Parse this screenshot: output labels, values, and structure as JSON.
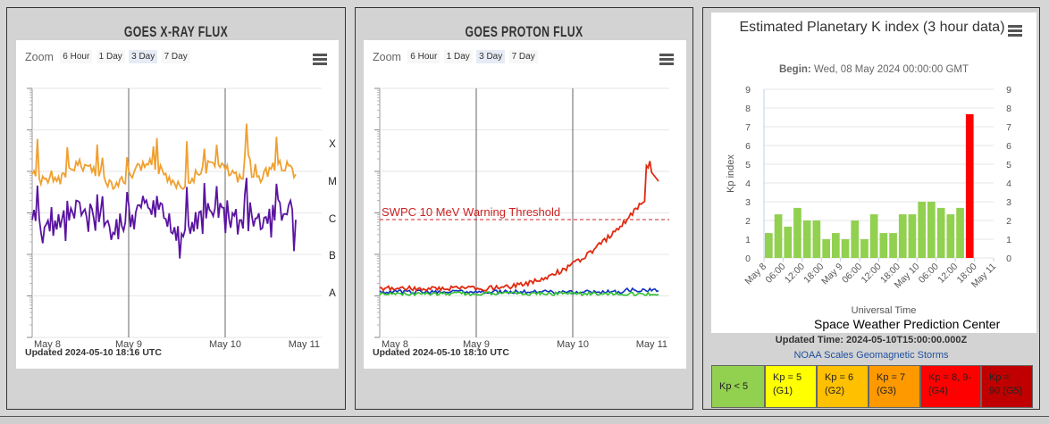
{
  "xray": {
    "title": "GOES X-RAY FLUX",
    "zoom_label": "Zoom",
    "zoom_options": [
      "6 Hour",
      "1 Day",
      "3 Day",
      "7 Day"
    ],
    "zoom_selected": "3 Day",
    "updated": "Updated 2024-05-10 18:16 UTC",
    "chart_data": {
      "type": "line",
      "x_ticks": [
        "May 8",
        "May 9",
        "May 10",
        "May 11"
      ],
      "class_labels": [
        "X",
        "M",
        "C",
        "B",
        "A"
      ],
      "scale": "log",
      "series": [
        {
          "color": "#f0a030"
        },
        {
          "color": "#5a14a0"
        }
      ]
    }
  },
  "proton": {
    "title": "GOES PROTON FLUX",
    "zoom_label": "Zoom",
    "zoom_options": [
      "6 Hour",
      "1 Day",
      "3 Day",
      "7 Day"
    ],
    "zoom_selected": "3 Day",
    "updated": "Updated 2024-05-10 18:10 UTC",
    "chart_data": {
      "type": "line",
      "x_ticks": [
        "May 8",
        "May 9",
        "May 10",
        "May 11"
      ],
      "scale": "log",
      "threshold_label": "SWPC 10 MeV Warning Threshold",
      "series": [
        {
          "color": "#e02a10"
        },
        {
          "color": "#1030c0"
        },
        {
          "color": "#30c030"
        }
      ]
    }
  },
  "kp": {
    "title": "Estimated Planetary K index (3 hour data)",
    "begin_label": "Begin:",
    "begin_value": "Wed, 08 May 2024 00:00:00 GMT",
    "credit": "Space Weather Prediction Center",
    "updated_time": "Updated Time: 2024-05-10T15:00:00.000Z",
    "noaa_link": "NOAA Scales Geomagnetic Storms",
    "chart_data": {
      "type": "bar",
      "ylabel": "Kp index",
      "xlabel": "Universal Time",
      "ylim": [
        0,
        9
      ],
      "y_ticks": [
        "0",
        "1",
        "2",
        "3",
        "4",
        "5",
        "6",
        "7",
        "8",
        "9"
      ],
      "x_ticks": [
        "May 8",
        "06:00",
        "12:00",
        "18:00",
        "May 9",
        "06:00",
        "12:00",
        "18:00",
        "May 10",
        "06:00",
        "12:00",
        "18:00",
        "May 11"
      ],
      "values": [
        1.33,
        2.33,
        1.67,
        2.67,
        2.0,
        2.0,
        1.0,
        1.33,
        1.0,
        2.0,
        1.0,
        2.33,
        1.33,
        1.33,
        2.33,
        2.33,
        3.0,
        3.0,
        2.67,
        2.33,
        2.67,
        7.67
      ],
      "bar_colors": [
        "#92d050",
        "#92d050",
        "#92d050",
        "#92d050",
        "#92d050",
        "#92d050",
        "#92d050",
        "#92d050",
        "#92d050",
        "#92d050",
        "#92d050",
        "#92d050",
        "#92d050",
        "#92d050",
        "#92d050",
        "#92d050",
        "#92d050",
        "#92d050",
        "#92d050",
        "#92d050",
        "#92d050",
        "#ff0000"
      ]
    },
    "scale": [
      {
        "l1": "Kp < 5",
        "l2": "",
        "color": "#92d050"
      },
      {
        "l1": "Kp = 5",
        "l2": "(G1)",
        "color": "#ffff00"
      },
      {
        "l1": "Kp = 6",
        "l2": "(G2)",
        "color": "#ffc000"
      },
      {
        "l1": "Kp = 7",
        "l2": "(G3)",
        "color": "#ff9900"
      },
      {
        "l1": "Kp = 8, 9-",
        "l2": "(G4)",
        "color": "#ff0000"
      },
      {
        "l1": "Kp =",
        "l2": "90 (G5)",
        "color": "#c00000"
      }
    ]
  }
}
